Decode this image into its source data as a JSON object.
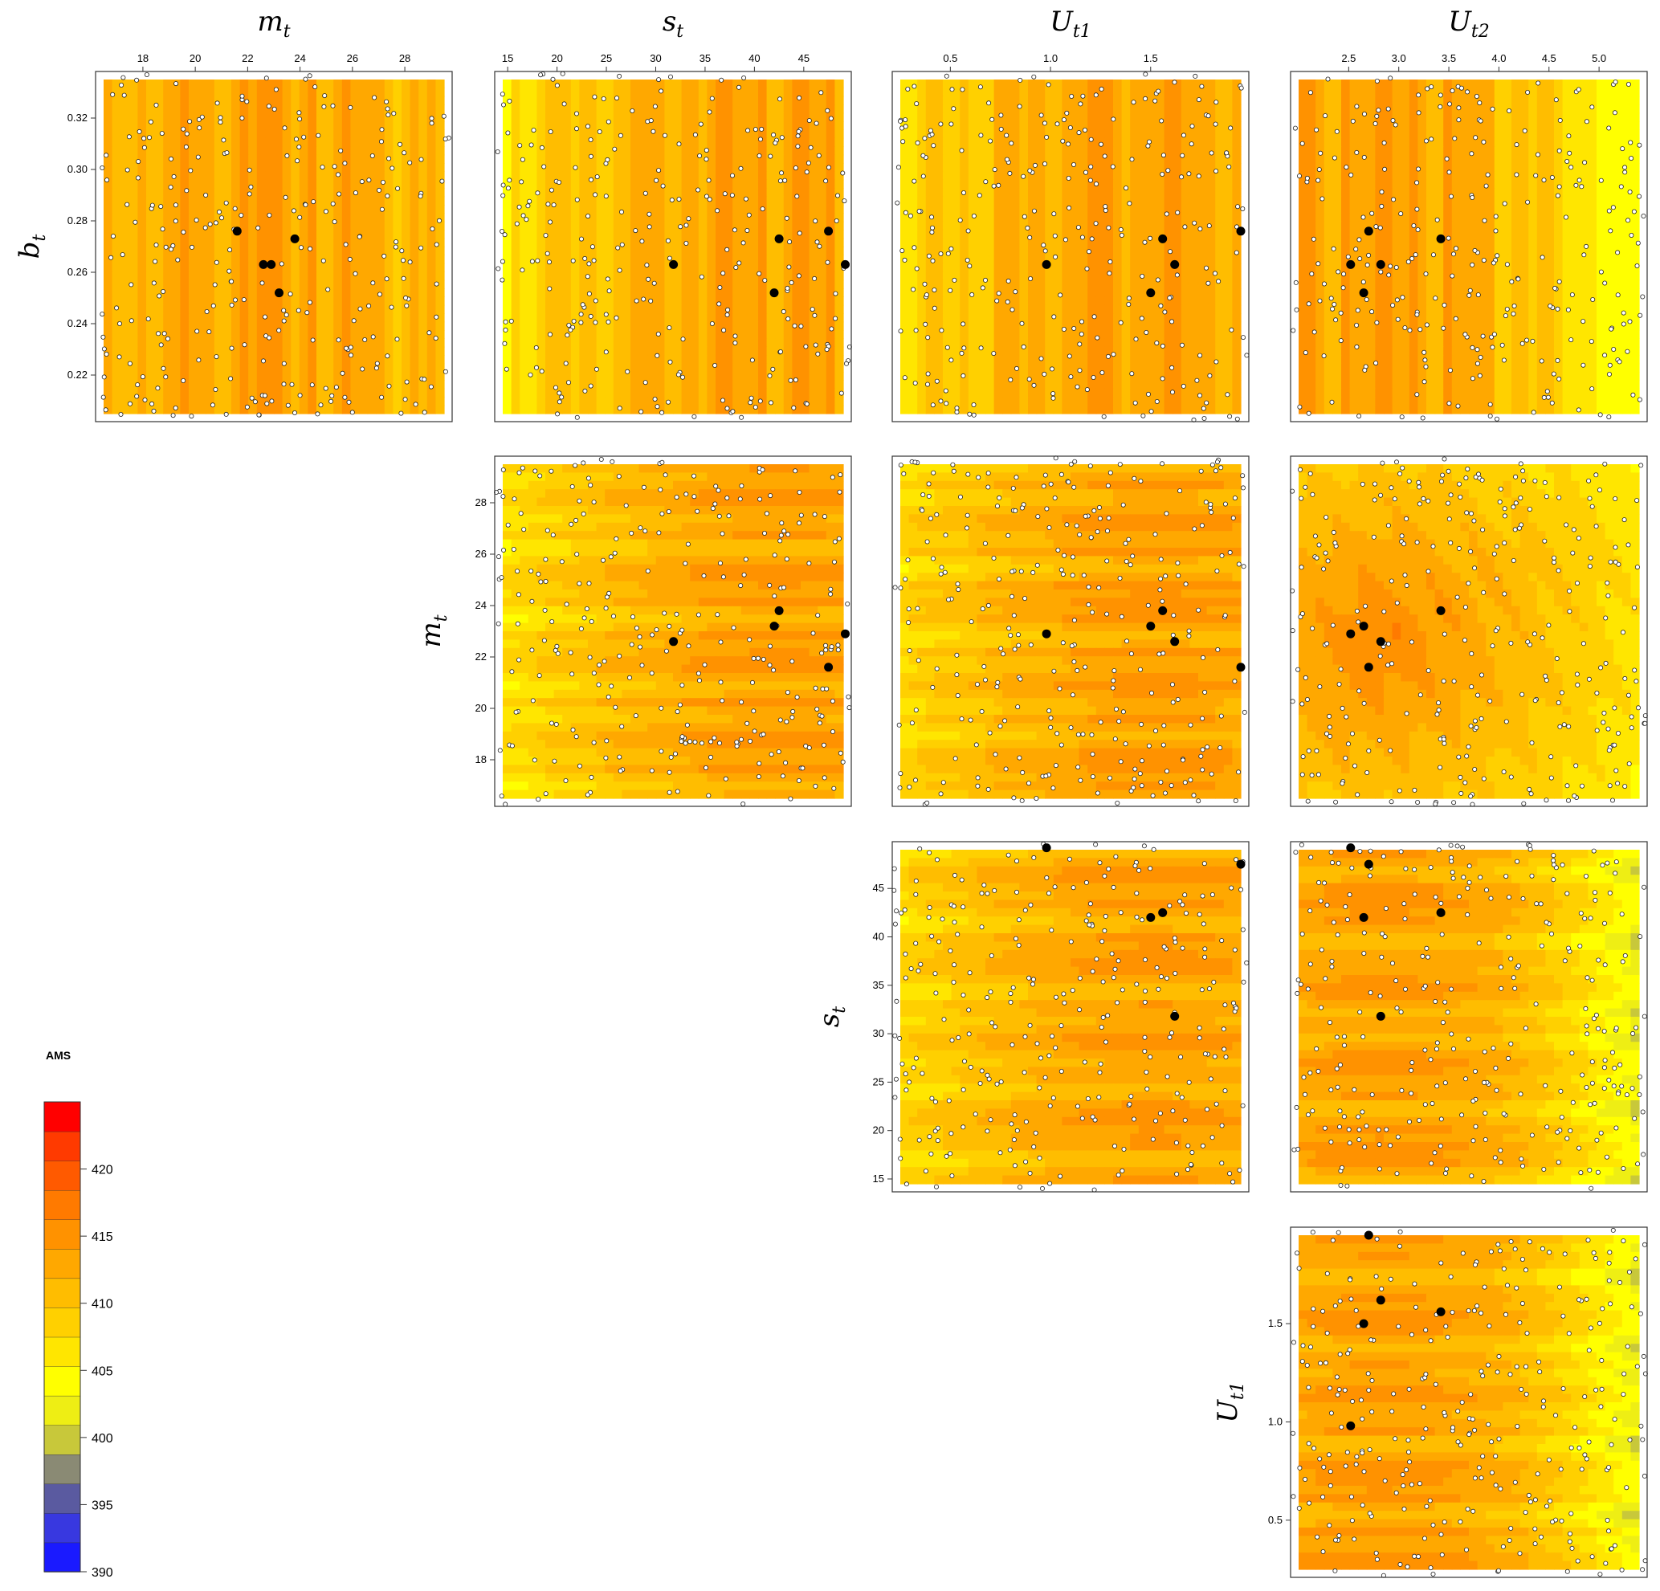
{
  "chart_data": {
    "type": "heatmap",
    "colorbar": {
      "title": "AMS",
      "min": 390,
      "max": 425,
      "step": 2.5,
      "ticks": [
        390,
        395,
        400,
        405,
        410,
        415,
        420
      ],
      "colors": [
        "#1a1aff",
        "#3838e0",
        "#5a5aa0",
        "#8a8a74",
        "#c8c83a",
        "#eeee14",
        "#ffff00",
        "#ffe600",
        "#ffd000",
        "#ffbd00",
        "#ffa800",
        "#ff9200",
        "#ff7a00",
        "#ff5a00",
        "#ff3a00",
        "#ff0000"
      ]
    },
    "variables": {
      "b_t": {
        "base": "b",
        "sub": "t",
        "range": [
          0.205,
          0.335
        ],
        "ticks": [
          "0.22",
          "0.24",
          "0.26",
          "0.28",
          "0.30",
          "0.32"
        ]
      },
      "m_t": {
        "base": "m",
        "sub": "t",
        "range": [
          16.5,
          29.5
        ],
        "ticks": [
          "18",
          "20",
          "22",
          "24",
          "26",
          "28"
        ]
      },
      "s_t": {
        "base": "s",
        "sub": "t",
        "range": [
          14.5,
          49.0
        ],
        "ticks": [
          "15",
          "20",
          "25",
          "30",
          "35",
          "40",
          "45"
        ]
      },
      "U_t1": {
        "base": "U",
        "sub": "t1",
        "range": [
          0.25,
          1.95
        ],
        "ticks": [
          "0.5",
          "1.0",
          "1.5"
        ]
      },
      "U_t2": {
        "base": "U",
        "sub": "t2",
        "range": [
          2.0,
          5.4
        ],
        "ticks": [
          "2.5",
          "3.0",
          "3.5",
          "4.0",
          "4.5",
          "5.0"
        ]
      }
    },
    "column_titles": [
      "m_t",
      "s_t",
      "U_t1",
      "U_t2"
    ],
    "row_titles": [
      "b_t",
      "m_t",
      "s_t",
      "U_t1"
    ],
    "panels": [
      {
        "row": 0,
        "col": 0,
        "x": "m_t",
        "y": "b_t",
        "optima": [
          [
            21.6,
            0.276
          ],
          [
            22.6,
            0.263
          ],
          [
            22.9,
            0.263
          ],
          [
            23.8,
            0.273
          ],
          [
            23.2,
            0.252
          ]
        ]
      },
      {
        "row": 0,
        "col": 1,
        "x": "s_t",
        "y": "b_t",
        "optima": [
          [
            31.8,
            0.263
          ],
          [
            42.5,
            0.273
          ],
          [
            42.0,
            0.252
          ],
          [
            47.5,
            0.276
          ],
          [
            49.2,
            0.263
          ]
        ]
      },
      {
        "row": 0,
        "col": 2,
        "x": "U_t1",
        "y": "b_t",
        "optima": [
          [
            0.98,
            0.263
          ],
          [
            1.56,
            0.273
          ],
          [
            1.62,
            0.263
          ],
          [
            1.5,
            0.252
          ],
          [
            1.95,
            0.276
          ]
        ]
      },
      {
        "row": 0,
        "col": 3,
        "x": "U_t2",
        "y": "b_t",
        "optima": [
          [
            2.52,
            0.263
          ],
          [
            2.7,
            0.276
          ],
          [
            2.82,
            0.263
          ],
          [
            3.42,
            0.273
          ],
          [
            2.65,
            0.252
          ]
        ]
      },
      {
        "row": 1,
        "col": 1,
        "x": "s_t",
        "y": "m_t",
        "optima": [
          [
            31.8,
            22.6
          ],
          [
            42.0,
            23.2
          ],
          [
            42.5,
            23.8
          ],
          [
            47.5,
            21.6
          ],
          [
            49.2,
            22.9
          ]
        ]
      },
      {
        "row": 1,
        "col": 2,
        "x": "U_t1",
        "y": "m_t",
        "optima": [
          [
            0.98,
            22.9
          ],
          [
            1.5,
            23.2
          ],
          [
            1.56,
            23.8
          ],
          [
            1.62,
            22.6
          ],
          [
            1.95,
            21.6
          ]
        ]
      },
      {
        "row": 1,
        "col": 3,
        "x": "U_t2",
        "y": "m_t",
        "optima": [
          [
            2.52,
            22.9
          ],
          [
            2.65,
            23.2
          ],
          [
            2.82,
            22.6
          ],
          [
            2.7,
            21.6
          ],
          [
            3.42,
            23.8
          ]
        ]
      },
      {
        "row": 2,
        "col": 2,
        "x": "U_t1",
        "y": "s_t",
        "optima": [
          [
            0.98,
            49.2
          ],
          [
            1.5,
            42.0
          ],
          [
            1.56,
            42.5
          ],
          [
            1.62,
            31.8
          ],
          [
            1.95,
            47.5
          ]
        ]
      },
      {
        "row": 2,
        "col": 3,
        "x": "U_t2",
        "y": "s_t",
        "optima": [
          [
            2.52,
            49.2
          ],
          [
            2.7,
            47.5
          ],
          [
            2.65,
            42.0
          ],
          [
            3.42,
            42.5
          ],
          [
            2.82,
            31.8
          ]
        ]
      },
      {
        "row": 3,
        "col": 3,
        "x": "U_t2",
        "y": "U_t1",
        "optima": [
          [
            2.7,
            1.95
          ],
          [
            2.82,
            1.62
          ],
          [
            2.65,
            1.5
          ],
          [
            3.42,
            1.56
          ],
          [
            2.52,
            0.98
          ]
        ]
      }
    ]
  }
}
